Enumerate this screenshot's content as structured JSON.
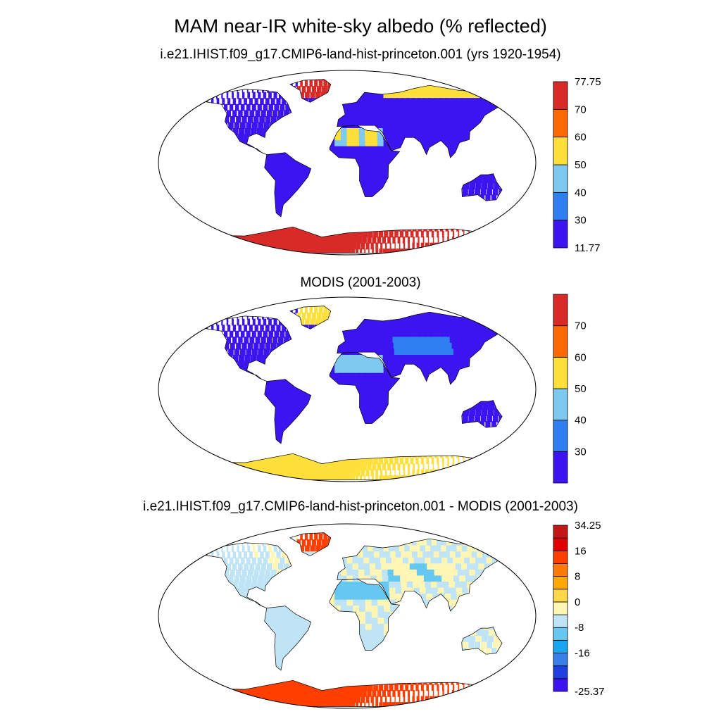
{
  "title": "MAM near-IR white-sky albedo (% reflected)",
  "panels": [
    {
      "title": "i.e21.IHIST.f09_g17.CMIP6-land-hist-princeton.001 (yrs 1920-1954)",
      "colorbar": {
        "colors": [
          "#3b14f0",
          "#2e7ff0",
          "#7fc8f0",
          "#ffe03a",
          "#ff6a00",
          "#d82a26"
        ],
        "labels": [
          "11.77",
          "30",
          "40",
          "50",
          "60",
          "70",
          "77.75"
        ]
      }
    },
    {
      "title": "MODIS (2001-2003)",
      "colorbar": {
        "colors": [
          "#3b14f0",
          "#2e7ff0",
          "#7fc8f0",
          "#ffe03a",
          "#ff6a00",
          "#d82a26"
        ],
        "labels": [
          "",
          "30",
          "40",
          "50",
          "60",
          "70",
          ""
        ]
      }
    },
    {
      "title": "i.e21.IHIST.f09_g17.CMIP6-land-hist-princeton.001 - MODIS (2001-2003)",
      "colorbar": {
        "colors": [
          "#3b14f0",
          "#1f3fe0",
          "#3a7fe8",
          "#1aa5f0",
          "#66c8f0",
          "#bfe4f5",
          "#fff6b5",
          "#ffd84a",
          "#ffa800",
          "#ff7a00",
          "#ff3e00",
          "#e00000",
          "#c41818"
        ],
        "labels": [
          "-25.37",
          "",
          "",
          "-16",
          "",
          "-8",
          "",
          "0",
          "",
          "8",
          "",
          "16",
          "",
          "34.25"
        ]
      }
    }
  ]
}
